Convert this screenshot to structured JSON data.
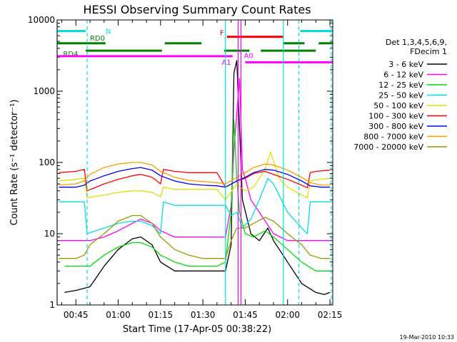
{
  "chart_data": {
    "type": "line",
    "title": "HESSI Observing Summary Count Rates",
    "xlabel": "Start Time (17-Apr-05 00:38:22)",
    "ylabel": "Count Rate (s⁻¹ detector⁻¹)",
    "y_scale": "log",
    "ylim": [
      1,
      10000
    ],
    "xlim": [
      "00:38:22",
      "02:16:00"
    ],
    "x_ticks": [
      "00:45",
      "01:00",
      "01:15",
      "01:30",
      "01:45",
      "02:00",
      "02:15"
    ],
    "y_ticks": [
      "1",
      "10",
      "100",
      "1000",
      "10000"
    ],
    "legend_title": [
      "Det 1,3,4,5,6,9,",
      "FDecim 1"
    ],
    "legend_position": "right",
    "series": [
      {
        "name": "3 - 6 keV",
        "color": "#000000",
        "x": [
          "00:41",
          "00:45",
          "00:50",
          "00:55",
          "01:00",
          "01:05",
          "01:08",
          "01:12",
          "01:15",
          "01:20",
          "01:25",
          "01:30",
          "01:35",
          "01:38",
          "01:40",
          "01:41",
          "01:42",
          "01:44",
          "01:47",
          "01:50",
          "01:53",
          "01:55",
          "02:00",
          "02:05",
          "02:10",
          "02:13",
          "02:15"
        ],
        "values": [
          1.5,
          1.6,
          1.8,
          3.5,
          6,
          8.5,
          9,
          7,
          4,
          3,
          3,
          3,
          3,
          3,
          7,
          1800,
          2700,
          30,
          10,
          8,
          12,
          8,
          4,
          2,
          1.5,
          1.4,
          1.5
        ]
      },
      {
        "name": "6 - 12 keV",
        "color": "#ff00ff",
        "x": [
          "00:39",
          "00:45",
          "00:50",
          "00:55",
          "01:00",
          "01:05",
          "01:08",
          "01:12",
          "01:15",
          "01:20",
          "01:25",
          "01:30",
          "01:35",
          "01:38",
          "01:40",
          "01:41",
          "01:42",
          "01:43",
          "01:44",
          "01:45",
          "01:47",
          "01:50",
          "01:55",
          "02:00",
          "02:05",
          "02:10",
          "02:15"
        ],
        "values": [
          8,
          8,
          8,
          9,
          11,
          14,
          16,
          14,
          11,
          9,
          9,
          9,
          9,
          9,
          25,
          150,
          500,
          1500,
          80,
          60,
          30,
          20,
          10,
          8,
          8,
          8,
          8
        ]
      },
      {
        "name": "12 - 25 keV",
        "color": "#00dd00",
        "x": [
          "00:41",
          "00:45",
          "00:50",
          "00:55",
          "01:00",
          "01:05",
          "01:08",
          "01:12",
          "01:15",
          "01:20",
          "01:25",
          "01:30",
          "01:35",
          "01:38",
          "01:40",
          "01:41",
          "01:42",
          "01:43",
          "01:45",
          "01:48",
          "01:52",
          "01:55",
          "02:00",
          "02:05",
          "02:10",
          "02:15"
        ],
        "values": [
          3.5,
          3.5,
          3.5,
          5,
          6.5,
          7.5,
          7.5,
          6.5,
          5,
          4,
          3.5,
          3.5,
          3.5,
          4,
          20,
          400,
          60,
          20,
          10,
          9,
          11,
          9,
          6,
          4,
          3,
          3
        ]
      },
      {
        "name": "25 - 50 keV",
        "color": "#00e0e0",
        "x": [
          "00:39",
          "00:45",
          "00:48",
          "00:49",
          "00:55",
          "01:00",
          "01:05",
          "01:08",
          "01:12",
          "01:15",
          "01:16",
          "01:20",
          "01:25",
          "01:30",
          "01:35",
          "01:38",
          "01:40",
          "01:42",
          "01:44",
          "01:47",
          "01:50",
          "01:53",
          "01:55",
          "02:00",
          "02:05",
          "02:07",
          "02:08",
          "02:10",
          "02:15"
        ],
        "values": [
          28,
          28,
          28,
          10,
          12,
          14,
          15,
          15,
          13,
          10,
          28,
          25,
          25,
          25,
          25,
          25,
          18,
          20,
          12,
          16,
          30,
          60,
          50,
          20,
          12,
          10,
          28,
          28,
          28
        ]
      },
      {
        "name": "50 - 100 keV",
        "color": "#e0e000",
        "x": [
          "00:39",
          "00:45",
          "00:48",
          "00:49",
          "00:55",
          "01:00",
          "01:05",
          "01:08",
          "01:12",
          "01:15",
          "01:16",
          "01:20",
          "01:25",
          "01:30",
          "01:35",
          "01:38",
          "01:42",
          "01:45",
          "01:48",
          "01:52",
          "01:54",
          "01:57",
          "02:00",
          "02:05",
          "02:07",
          "02:08",
          "02:10",
          "02:15"
        ],
        "values": [
          55,
          58,
          60,
          32,
          35,
          38,
          40,
          40,
          38,
          33,
          45,
          42,
          42,
          42,
          42,
          30,
          50,
          40,
          45,
          80,
          140,
          60,
          45,
          35,
          32,
          55,
          57,
          60
        ]
      },
      {
        "name": "100 - 300 keV",
        "color": "#ff0000",
        "x": [
          "00:39",
          "00:45",
          "00:48",
          "00:49",
          "00:55",
          "01:00",
          "01:05",
          "01:08",
          "01:12",
          "01:15",
          "01:16",
          "01:20",
          "01:25",
          "01:30",
          "01:35",
          "01:38",
          "01:42",
          "01:45",
          "01:48",
          "01:52",
          "01:55",
          "02:00",
          "02:05",
          "02:07",
          "02:08",
          "02:10",
          "02:15"
        ],
        "values": [
          72,
          75,
          80,
          40,
          50,
          58,
          65,
          68,
          62,
          50,
          80,
          75,
          72,
          72,
          72,
          45,
          55,
          60,
          70,
          75,
          68,
          58,
          48,
          44,
          72,
          75,
          78
        ]
      },
      {
        "name": "300 - 800 keV",
        "color": "#0000ff",
        "x": [
          "00:39",
          "00:45",
          "00:48",
          "00:50",
          "00:55",
          "01:00",
          "01:05",
          "01:08",
          "01:12",
          "01:15",
          "01:20",
          "01:25",
          "01:30",
          "01:35",
          "01:38",
          "01:42",
          "01:45",
          "01:48",
          "01:52",
          "01:55",
          "02:00",
          "02:05",
          "02:08",
          "02:12",
          "02:15"
        ],
        "values": [
          45,
          45,
          48,
          55,
          65,
          75,
          82,
          85,
          78,
          65,
          55,
          50,
          48,
          47,
          45,
          55,
          62,
          72,
          80,
          78,
          68,
          55,
          47,
          45,
          45
        ]
      },
      {
        "name": "800 - 7000 keV",
        "color": "#ff9900",
        "x": [
          "00:39",
          "00:45",
          "00:48",
          "00:50",
          "00:55",
          "01:00",
          "01:05",
          "01:08",
          "01:12",
          "01:15",
          "01:20",
          "01:25",
          "01:30",
          "01:35",
          "01:38",
          "01:42",
          "01:45",
          "01:48",
          "01:52",
          "01:55",
          "02:00",
          "02:05",
          "02:08",
          "02:12",
          "02:15"
        ],
        "values": [
          48,
          50,
          55,
          68,
          85,
          95,
          100,
          100,
          92,
          75,
          62,
          56,
          54,
          52,
          50,
          62,
          72,
          85,
          95,
          92,
          78,
          62,
          52,
          48,
          48
        ]
      },
      {
        "name": "7000 - 20000 keV",
        "color": "#999900",
        "x": [
          "00:39",
          "00:45",
          "00:48",
          "00:50",
          "00:55",
          "01:00",
          "01:05",
          "01:08",
          "01:12",
          "01:15",
          "01:20",
          "01:25",
          "01:30",
          "01:35",
          "01:38",
          "01:40",
          "01:42",
          "01:45",
          "01:48",
          "01:52",
          "01:55",
          "02:00",
          "02:05",
          "02:08",
          "02:12",
          "02:15"
        ],
        "values": [
          4.5,
          4.5,
          5,
          7,
          10,
          15,
          18,
          18,
          14,
          9,
          6,
          5,
          4.5,
          4.5,
          4.5,
          8,
          12,
          12,
          14,
          17,
          15,
          10,
          7,
          5,
          4.5,
          4.5
        ]
      }
    ],
    "flags": [
      {
        "label": "N",
        "color": "#00e0e0",
        "y": 7000,
        "segments": [
          [
            "00:38:22",
            "00:48:30"
          ],
          [
            "02:04:30",
            "02:16:00"
          ]
        ]
      },
      {
        "label": "RD0",
        "color": "#008000",
        "y": 4700,
        "segments": [
          [
            "00:38:22",
            "00:55:30"
          ],
          [
            "01:16:30",
            "01:29:30"
          ],
          [
            "01:58:30",
            "02:06:00"
          ],
          [
            "02:11:00",
            "02:16:00"
          ]
        ]
      },
      {
        "label": "RD4",
        "color": "#008000",
        "y": 3700,
        "segments": [
          [
            "00:48:30",
            "01:15:30"
          ],
          [
            "01:37:30",
            "01:46:30"
          ],
          [
            "01:50:30",
            "02:10:00"
          ]
        ]
      },
      {
        "label": "F",
        "color": "#ff0000",
        "y": 5800,
        "segments": [
          [
            "01:38:30",
            "01:58:30"
          ]
        ]
      },
      {
        "label": "A1",
        "color": "#ff00ff",
        "y": 3100,
        "segments": [
          [
            "00:38:22",
            "01:40:30"
          ]
        ]
      },
      {
        "label": "A0",
        "color": "#ff00ff",
        "y": 2550,
        "segments": [
          [
            "01:45:00",
            "02:16:00"
          ]
        ]
      }
    ],
    "verticals": [
      {
        "t": "00:38:22",
        "color": "#00e0e0",
        "style": "solid"
      },
      {
        "t": "00:49:00",
        "color": "#00e0e0",
        "style": "dash"
      },
      {
        "t": "01:38:00",
        "color": "#00e0e0",
        "style": "solid"
      },
      {
        "t": "01:42:30",
        "color": "#ff00ff",
        "style": "solid"
      },
      {
        "t": "01:43:30",
        "color": "#ff00ff",
        "style": "solid"
      },
      {
        "t": "01:58:30",
        "color": "#00e0e0",
        "style": "solid"
      },
      {
        "t": "02:04:00",
        "color": "#00e0e0",
        "style": "dash"
      },
      {
        "t": "02:15:30",
        "color": "#00e0e0",
        "style": "dash"
      }
    ],
    "grid": false
  },
  "footer": {
    "timestamp": "19-Mar-2010 10:33"
  }
}
